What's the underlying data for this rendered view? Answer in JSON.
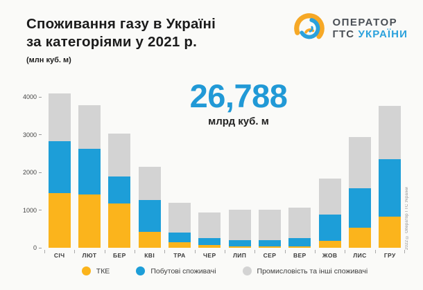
{
  "header": {
    "title_line1": "Споживання газу в Україні",
    "title_line2": "за категоріями у 2021 р.",
    "subtitle": "(млн куб. м)"
  },
  "logo": {
    "line1": "ОПЕРАТОР",
    "line2_dark": "ГТС",
    "line2_blue": "УКРАЇНИ"
  },
  "total": {
    "value": "26,788",
    "unit": "млрд куб. м"
  },
  "copyright": "2022 © Оператор ГТС України",
  "colors": {
    "accent_number": "#2199D6",
    "tke": "#FBB41C",
    "household": "#1D9ED8",
    "industry": "#D3D3D3"
  },
  "chart_data": {
    "type": "bar",
    "stacked": true,
    "title": "Споживання газу в Україні за категоріями у 2021 р.",
    "units": "млн куб. м",
    "categories": [
      "СІЧ",
      "ЛЮТ",
      "БЕР",
      "КВІ",
      "ТРА",
      "ЧЕР",
      "ЛИП",
      "СЕР",
      "ВЕР",
      "ЖОВ",
      "ЛИС",
      "ГРУ"
    ],
    "series": [
      {
        "key": "tke",
        "name": "ТКЕ",
        "color": "#FBB41C",
        "values": [
          1450,
          1420,
          1180,
          430,
          140,
          80,
          30,
          30,
          40,
          190,
          530,
          820
        ]
      },
      {
        "key": "household",
        "name": "Побутові споживачі",
        "color": "#1D9ED8",
        "values": [
          1370,
          1210,
          710,
          840,
          270,
          180,
          170,
          180,
          220,
          690,
          1050,
          1530
        ]
      },
      {
        "key": "industry",
        "name": "Промисловість та інші споживачі",
        "color": "#D3D3D3",
        "values": [
          1280,
          1150,
          1130,
          880,
          790,
          670,
          810,
          800,
          810,
          950,
          1350,
          1410
        ]
      }
    ],
    "totals_by_month": [
      4100,
      3780,
      3020,
      2150,
      1200,
      930,
      1010,
      1010,
      1070,
      1830,
      2930,
      3760
    ],
    "annual_total_shown": "26,788 млрд куб. м",
    "yticks": [
      0,
      1000,
      2000,
      3000,
      4000
    ],
    "ylim": [
      0,
      4400
    ],
    "grid": false,
    "legend_position": "bottom"
  }
}
